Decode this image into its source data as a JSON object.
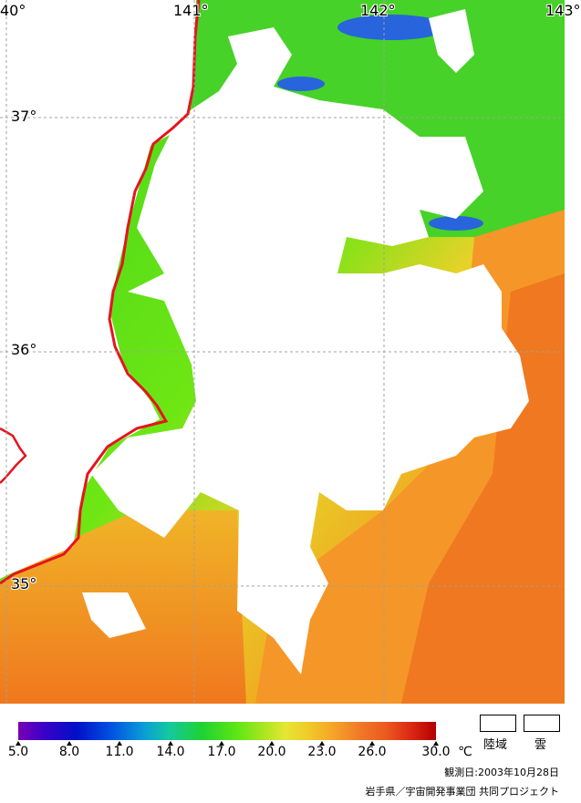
{
  "map": {
    "longitude_labels": [
      "40°",
      "141°",
      "142°",
      "143°"
    ],
    "latitude_labels": [
      "37°",
      "36°",
      "35°"
    ],
    "land_color": "#ffffff",
    "cloud_color": "#ffffff",
    "coastline_color": "#e6141e",
    "gridline_color": "#a0a0a0"
  },
  "legend": {
    "tick_labels": [
      "5.0",
      "8.0",
      "11.0",
      "14.0",
      "17.0",
      "20.0",
      "23.0",
      "26.0",
      "30.0"
    ],
    "unit": "℃",
    "key_land_label": "陸域",
    "key_cloud_label": "雲",
    "observation_date": "観測日:2003年10月28日",
    "credit": "岩手県／宇宙開発事業団 共同プロジェクト"
  }
}
